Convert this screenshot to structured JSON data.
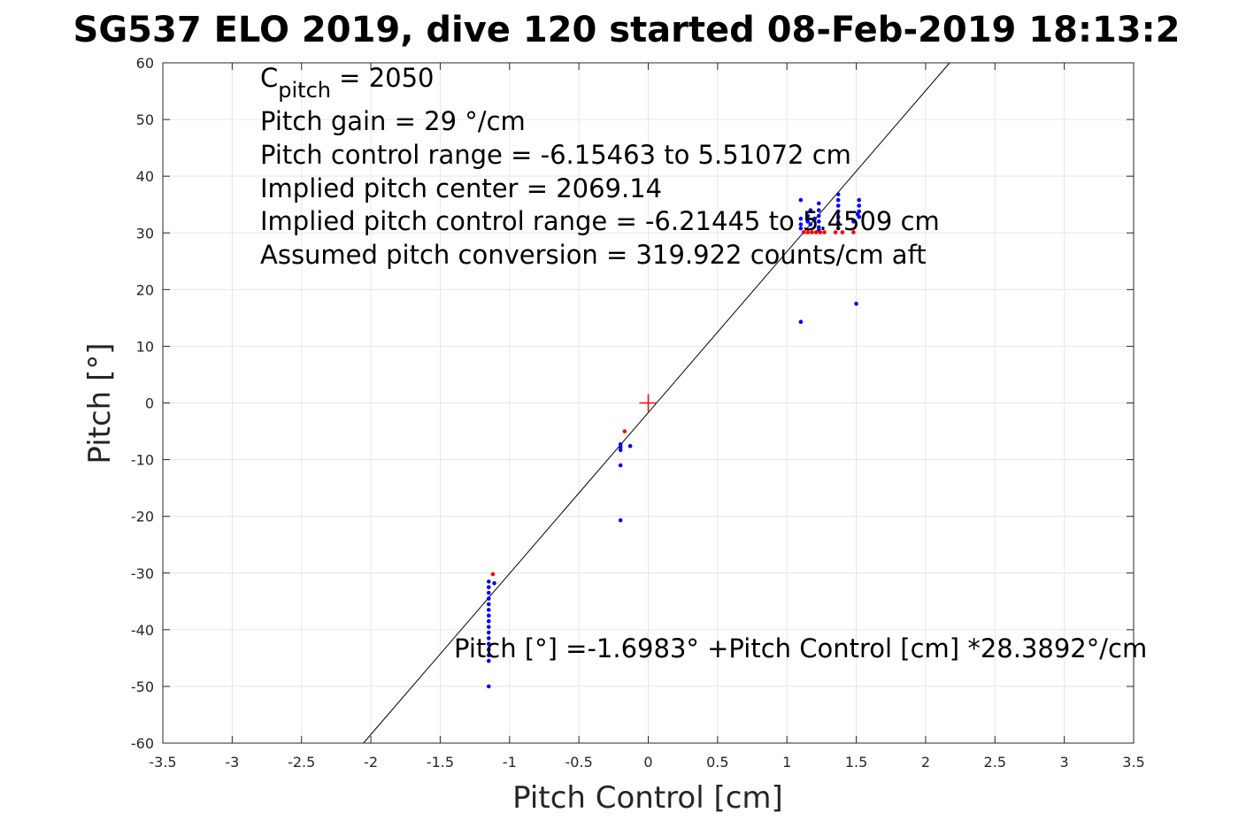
{
  "chart_data": {
    "type": "scatter",
    "title": "SG537 ELO 2019, dive 120 started 08-Feb-2019 18:13:2",
    "xlabel": "Pitch Control [cm]",
    "ylabel": "Pitch [°]",
    "xlim": [
      -3.5,
      3.5
    ],
    "ylim": [
      -60,
      60
    ],
    "xticks": [
      -3.5,
      -3,
      -2.5,
      -2,
      -1.5,
      -1,
      -0.5,
      0,
      0.5,
      1,
      1.5,
      2,
      2.5,
      3,
      3.5
    ],
    "yticks": [
      -60,
      -50,
      -40,
      -30,
      -20,
      -10,
      0,
      10,
      20,
      30,
      40,
      50,
      60
    ],
    "xtick_labels": [
      "-3.5",
      "-3",
      "-2.5",
      "-2",
      "-1.5",
      "-1",
      "-0.5",
      "0",
      "0.5",
      "1",
      "1.5",
      "2",
      "2.5",
      "3",
      "3.5"
    ],
    "ytick_labels": [
      "-60",
      "-50",
      "-40",
      "-30",
      "-20",
      "-10",
      "0",
      "10",
      "20",
      "30",
      "40",
      "50",
      "60"
    ],
    "grid": true,
    "colors": {
      "blue": "#0000ff",
      "red": "#ff0000",
      "line": "#000000",
      "grid": "#e6e6e6"
    },
    "series": [
      {
        "color": "blue",
        "points": [
          [
            -1.15,
            -31.5
          ],
          [
            -1.15,
            -32.5
          ],
          [
            -1.15,
            -33.5
          ],
          [
            -1.15,
            -34.5
          ],
          [
            -1.15,
            -35.5
          ],
          [
            -1.15,
            -36.5
          ],
          [
            -1.15,
            -37.5
          ],
          [
            -1.15,
            -38.5
          ],
          [
            -1.15,
            -39.5
          ],
          [
            -1.15,
            -40.5
          ],
          [
            -1.15,
            -41.5
          ],
          [
            -1.15,
            -42.5
          ],
          [
            -1.15,
            -43.5
          ],
          [
            -1.15,
            -44.5
          ],
          [
            -1.15,
            -45.5
          ],
          [
            -1.15,
            -50
          ],
          [
            -1.11,
            -31.8
          ],
          [
            -0.2,
            -7.3
          ],
          [
            -0.2,
            -7.8
          ],
          [
            -0.2,
            -8.3
          ],
          [
            -0.2,
            -11
          ],
          [
            -0.2,
            -20.7
          ],
          [
            -0.13,
            -7.6
          ],
          [
            1.1,
            35.8
          ],
          [
            1.1,
            32.5
          ],
          [
            1.1,
            31.5
          ],
          [
            1.1,
            30.8
          ],
          [
            1.1,
            14.3
          ],
          [
            1.15,
            33
          ],
          [
            1.15,
            32
          ],
          [
            1.17,
            34
          ],
          [
            1.17,
            31.5
          ],
          [
            1.2,
            32.5
          ],
          [
            1.23,
            35.2
          ],
          [
            1.23,
            34
          ],
          [
            1.23,
            33
          ],
          [
            1.23,
            32
          ],
          [
            1.23,
            31
          ],
          [
            1.23,
            30.5
          ],
          [
            1.37,
            36.8
          ],
          [
            1.37,
            35.8
          ],
          [
            1.37,
            34.8
          ],
          [
            1.37,
            33.8
          ],
          [
            1.37,
            32.8
          ],
          [
            1.37,
            31.8
          ],
          [
            1.37,
            30.8
          ],
          [
            1.48,
            32
          ],
          [
            1.5,
            17.5
          ],
          [
            1.52,
            35.8
          ],
          [
            1.52,
            34.8
          ],
          [
            1.52,
            33.8
          ],
          [
            1.52,
            32.8
          ],
          [
            1.51,
            33.3
          ]
        ]
      },
      {
        "color": "red",
        "points": [
          [
            -1.12,
            -30.2
          ],
          [
            -0.17,
            -5
          ],
          [
            1.12,
            30.1
          ],
          [
            1.15,
            30.1
          ],
          [
            1.18,
            30.1
          ],
          [
            1.21,
            30.1
          ],
          [
            1.24,
            30.1
          ],
          [
            1.27,
            30.1
          ],
          [
            1.35,
            30.1
          ],
          [
            1.4,
            30.1
          ],
          [
            1.48,
            30.1
          ]
        ]
      }
    ],
    "fit_line": {
      "intercept": -1.6983,
      "slope": 28.3892
    },
    "marker_plus": {
      "x": 0,
      "y": 0
    },
    "annotations": {
      "c_pitch_main": "C",
      "c_pitch_sub": "pitch",
      "c_pitch_value": " = 2050",
      "line2": "Pitch gain = 29 °/cm",
      "line3": "Pitch control range = -6.15463 to 5.51072 cm",
      "line4": "Implied pitch center = 2069.14",
      "line5": "Implied pitch control range = -6.21445 to 5.4509 cm",
      "line6": "Assumed pitch conversion = 319.922 counts/cm aft",
      "fit_text": "Pitch [°] =-1.6983° +Pitch Control [cm] *28.3892°/cm"
    }
  }
}
